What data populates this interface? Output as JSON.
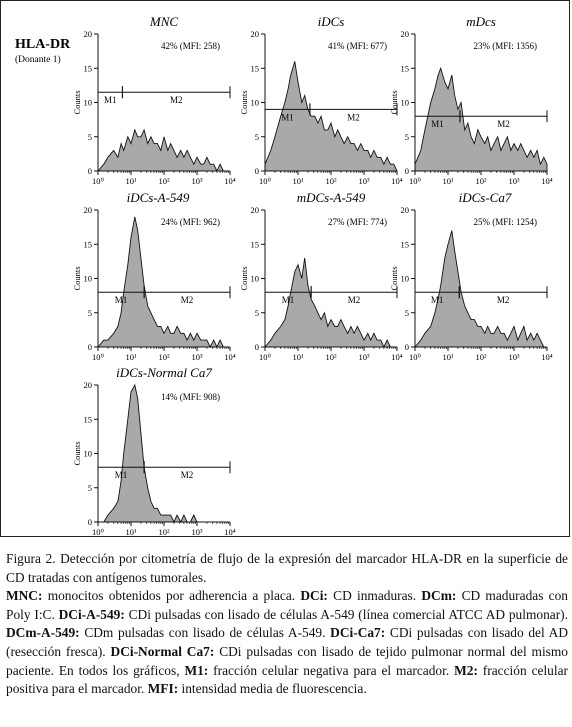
{
  "header": {
    "label": "HLA-DR",
    "sublabel": "(Donante 1)"
  },
  "chart_data": [
    {
      "type": "histogram",
      "title": "MNC",
      "annotation": "42% (MFI: 258)",
      "ylabel": "Counts",
      "xscale": "log",
      "xlim": [
        1,
        10000
      ],
      "ylim": [
        0,
        20
      ],
      "yticks": [
        0,
        5,
        10,
        15,
        20
      ],
      "xticks": [
        "10⁰",
        "10¹",
        "10²",
        "10³",
        "10⁴"
      ],
      "markers": [
        {
          "name": "M1",
          "from": 1,
          "to": 5.5,
          "y": 11.5
        },
        {
          "name": "M2",
          "from": 5.5,
          "to": 10000,
          "y": 11.5
        }
      ],
      "x": [
        1,
        1.5,
        2,
        3,
        4,
        5,
        6,
        8,
        10,
        13,
        16,
        20,
        25,
        32,
        40,
        50,
        63,
        80,
        100,
        130,
        160,
        200,
        250,
        320,
        400,
        500,
        630,
        800,
        1000,
        1300,
        1600,
        2000,
        2500,
        3200,
        4000,
        5000,
        6300,
        8000,
        10000
      ],
      "counts": [
        0,
        1,
        2,
        3,
        2,
        4,
        3,
        5,
        4,
        6,
        5,
        5,
        6,
        4,
        5,
        4,
        4,
        3,
        5,
        3,
        4,
        3,
        2,
        3,
        2,
        3,
        2,
        1,
        2,
        1,
        1,
        2,
        1,
        1,
        0,
        1,
        0,
        0,
        0
      ]
    },
    {
      "type": "histogram",
      "title": "iDCs",
      "annotation": "41% (MFI: 677)",
      "ylabel": "Counts",
      "xscale": "log",
      "xlim": [
        1,
        10000
      ],
      "ylim": [
        0,
        20
      ],
      "yticks": [
        0,
        5,
        10,
        15,
        20
      ],
      "xticks": [
        "10⁰",
        "10¹",
        "10²",
        "10³",
        "10⁴"
      ],
      "markers": [
        {
          "name": "M1",
          "from": 1,
          "to": 23,
          "y": 9
        },
        {
          "name": "M2",
          "from": 23,
          "to": 10000,
          "y": 9
        }
      ],
      "x": [
        1,
        1.5,
        2,
        3,
        4,
        5,
        6,
        8,
        10,
        13,
        16,
        20,
        25,
        32,
        40,
        50,
        63,
        80,
        100,
        130,
        160,
        200,
        250,
        320,
        400,
        500,
        630,
        800,
        1000,
        1300,
        1600,
        2000,
        2500,
        3200,
        4000,
        5000,
        6300,
        8000,
        10000
      ],
      "counts": [
        1,
        3,
        5,
        8,
        10,
        12,
        14,
        16,
        13,
        10,
        11,
        9,
        8,
        8,
        7,
        8,
        6,
        6,
        7,
        5,
        6,
        5,
        4,
        5,
        4,
        4,
        3,
        4,
        3,
        3,
        2,
        3,
        2,
        2,
        1,
        2,
        1,
        1,
        0
      ]
    },
    {
      "type": "histogram",
      "title": "mDcs",
      "annotation": "23% (MFI: 1356)",
      "ylabel": "Counts",
      "xscale": "log",
      "xlim": [
        1,
        10000
      ],
      "ylim": [
        0,
        20
      ],
      "yticks": [
        0,
        5,
        10,
        15,
        20
      ],
      "xticks": [
        "10⁰",
        "10¹",
        "10²",
        "10³",
        "10⁴"
      ],
      "markers": [
        {
          "name": "M1",
          "from": 1,
          "to": 23,
          "y": 8
        },
        {
          "name": "M2",
          "from": 23,
          "to": 10000,
          "y": 8
        }
      ],
      "x": [
        1,
        1.5,
        2,
        3,
        4,
        5,
        6,
        8,
        10,
        13,
        16,
        20,
        25,
        32,
        40,
        50,
        63,
        80,
        100,
        130,
        160,
        200,
        250,
        320,
        400,
        500,
        630,
        800,
        1000,
        1300,
        1600,
        2000,
        2500,
        3200,
        4000,
        5000,
        6300,
        8000,
        10000
      ],
      "counts": [
        1,
        3,
        6,
        10,
        12,
        14,
        15,
        13,
        12,
        14,
        11,
        9,
        10,
        6,
        7,
        5,
        4,
        6,
        5,
        4,
        5,
        3,
        4,
        5,
        3,
        4,
        5,
        3,
        4,
        3,
        4,
        3,
        2,
        3,
        2,
        3,
        1,
        2,
        1
      ]
    },
    {
      "type": "histogram",
      "title": "iDCs-A-549",
      "annotation": "24% (MFI: 962)",
      "ylabel": "Counts",
      "xscale": "log",
      "xlim": [
        1,
        10000
      ],
      "ylim": [
        0,
        20
      ],
      "yticks": [
        0,
        5,
        10,
        15,
        20
      ],
      "xticks": [
        "10⁰",
        "10¹",
        "10²",
        "10³",
        "10⁴"
      ],
      "markers": [
        {
          "name": "M1",
          "from": 1,
          "to": 25,
          "y": 8
        },
        {
          "name": "M2",
          "from": 25,
          "to": 10000,
          "y": 8
        }
      ],
      "x": [
        1,
        1.5,
        2,
        3,
        4,
        5,
        6,
        8,
        10,
        13,
        16,
        20,
        25,
        32,
        40,
        50,
        63,
        80,
        100,
        130,
        160,
        200,
        250,
        320,
        400,
        500,
        630,
        800,
        1000,
        1300,
        1600,
        2000,
        2500,
        3200,
        4000,
        5000,
        6300,
        8000,
        10000
      ],
      "counts": [
        0,
        1,
        1,
        2,
        3,
        5,
        8,
        12,
        16,
        19,
        17,
        13,
        9,
        6,
        5,
        4,
        3,
        3,
        2,
        3,
        2,
        2,
        3,
        2,
        2,
        1,
        2,
        1,
        2,
        1,
        1,
        1,
        0,
        1,
        0,
        1,
        0,
        0,
        0
      ]
    },
    {
      "type": "histogram",
      "title": "mDCs-A-549",
      "annotation": "27% (MFI: 774)",
      "ylabel": "Counts",
      "xscale": "log",
      "xlim": [
        1,
        10000
      ],
      "ylim": [
        0,
        20
      ],
      "yticks": [
        0,
        5,
        10,
        15,
        20
      ],
      "xticks": [
        "10⁰",
        "10¹",
        "10²",
        "10³",
        "10⁴"
      ],
      "markers": [
        {
          "name": "M1",
          "from": 1,
          "to": 25,
          "y": 8
        },
        {
          "name": "M2",
          "from": 25,
          "to": 10000,
          "y": 8
        }
      ],
      "x": [
        1,
        1.5,
        2,
        3,
        4,
        5,
        6,
        8,
        10,
        13,
        16,
        20,
        25,
        32,
        40,
        50,
        63,
        80,
        100,
        130,
        160,
        200,
        250,
        320,
        400,
        500,
        630,
        800,
        1000,
        1300,
        1600,
        2000,
        2500,
        3200,
        4000,
        5000,
        6300,
        8000,
        10000
      ],
      "counts": [
        0,
        1,
        2,
        3,
        4,
        6,
        8,
        11,
        12,
        10,
        13,
        9,
        7,
        6,
        5,
        4,
        5,
        3,
        4,
        3,
        3,
        4,
        3,
        2,
        3,
        2,
        3,
        2,
        1,
        2,
        1,
        2,
        1,
        1,
        0,
        1,
        0,
        0,
        0
      ]
    },
    {
      "type": "histogram",
      "title": "iDCs-Ca7",
      "annotation": "25% (MFI: 1254)",
      "ylabel": "Counts",
      "xscale": "log",
      "xlim": [
        1,
        10000
      ],
      "ylim": [
        0,
        20
      ],
      "yticks": [
        0,
        5,
        10,
        15,
        20
      ],
      "xticks": [
        "10⁰",
        "10¹",
        "10²",
        "10³",
        "10⁴"
      ],
      "markers": [
        {
          "name": "M1",
          "from": 1,
          "to": 22,
          "y": 8
        },
        {
          "name": "M2",
          "from": 22,
          "to": 10000,
          "y": 8
        }
      ],
      "x": [
        1,
        1.5,
        2,
        3,
        4,
        5,
        6,
        8,
        10,
        13,
        16,
        20,
        25,
        32,
        40,
        50,
        63,
        80,
        100,
        130,
        160,
        200,
        250,
        320,
        400,
        500,
        630,
        800,
        1000,
        1300,
        1600,
        2000,
        2500,
        3200,
        4000,
        5000,
        6300,
        8000,
        10000
      ],
      "counts": [
        0,
        1,
        2,
        3,
        5,
        7,
        9,
        13,
        15,
        17,
        14,
        11,
        8,
        6,
        5,
        4,
        4,
        3,
        3,
        2,
        3,
        2,
        2,
        3,
        2,
        2,
        1,
        2,
        3,
        1,
        2,
        3,
        1,
        2,
        1,
        2,
        1,
        0,
        0
      ]
    },
    {
      "type": "histogram",
      "title": "iDCs-Normal Ca7",
      "annotation": "14% (MFI: 908)",
      "ylabel": "Counts",
      "xscale": "log",
      "xlim": [
        1,
        10000
      ],
      "ylim": [
        0,
        20
      ],
      "yticks": [
        0,
        5,
        10,
        15,
        20
      ],
      "xticks": [
        "10⁰",
        "10¹",
        "10²",
        "10³",
        "10⁴"
      ],
      "markers": [
        {
          "name": "M1",
          "from": 1,
          "to": 25,
          "y": 8
        },
        {
          "name": "M2",
          "from": 25,
          "to": 10000,
          "y": 8
        }
      ],
      "x": [
        1,
        1.5,
        2,
        3,
        4,
        5,
        6,
        8,
        10,
        13,
        16,
        20,
        25,
        32,
        40,
        50,
        63,
        80,
        100,
        130,
        160,
        200,
        250,
        320,
        400,
        500,
        630,
        800,
        1000,
        1300,
        1600,
        2000,
        2500,
        3200,
        4000,
        5000,
        6300,
        8000,
        10000
      ],
      "counts": [
        0,
        0,
        1,
        2,
        3,
        6,
        10,
        15,
        19,
        20,
        18,
        13,
        8,
        5,
        3,
        2,
        2,
        1,
        1,
        1,
        1,
        0,
        1,
        0,
        1,
        0,
        0,
        1,
        0,
        0,
        0,
        0,
        0,
        0,
        0,
        0,
        0,
        0,
        0
      ]
    }
  ],
  "caption": {
    "lines": [
      [
        {
          "t": "Figura 2. Detección por citometría de flujo de la expresión del marcador HLA-DR en la superficie de CD tratadas con antígenos tumorales."
        }
      ],
      [
        {
          "b": "MNC:"
        },
        {
          "t": " monocitos obtenidos por adherencia a placa. "
        },
        {
          "b": "DCi:"
        },
        {
          "t": " CD inmaduras. "
        },
        {
          "b": "DCm:"
        },
        {
          "t": " CD maduradas con Poly I:C. "
        },
        {
          "b": "DCi-A-549:"
        },
        {
          "t": " CDi pulsadas con lisado de células A-549 (línea comercial ATCC AD pulmonar). "
        },
        {
          "b": "DCm-A-549:"
        },
        {
          "t": " CDm pulsadas con lisado de células A-549. "
        },
        {
          "b": "DCi-Ca7:"
        },
        {
          "t": " CDi pulsadas con lisado del AD (resección fresca). "
        },
        {
          "b": "DCi-Normal Ca7:"
        },
        {
          "t": " CDi pulsadas con lisado de tejido pulmonar normal del mismo paciente. En todos los gráficos, "
        },
        {
          "b": "M1:"
        },
        {
          "t": " fracción celular negativa para el marcador. "
        },
        {
          "b": "M2:"
        },
        {
          "t": " fracción celular positiva para el marcador. "
        },
        {
          "b": "MFI:"
        },
        {
          "t": " intensidad media de fluorescencia."
        }
      ]
    ]
  },
  "colors": {
    "fill": "#a9a9a9",
    "stroke": "#111111",
    "axis": "#111111"
  }
}
